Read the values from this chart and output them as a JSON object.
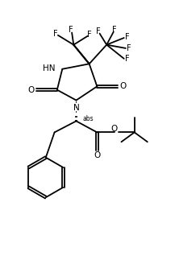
{
  "bg_color": "#ffffff",
  "line_color": "#000000",
  "lw": 1.3,
  "figsize": [
    2.17,
    3.18
  ],
  "dpi": 100,
  "xlim": [
    0,
    10
  ],
  "ylim": [
    0,
    14.7
  ]
}
